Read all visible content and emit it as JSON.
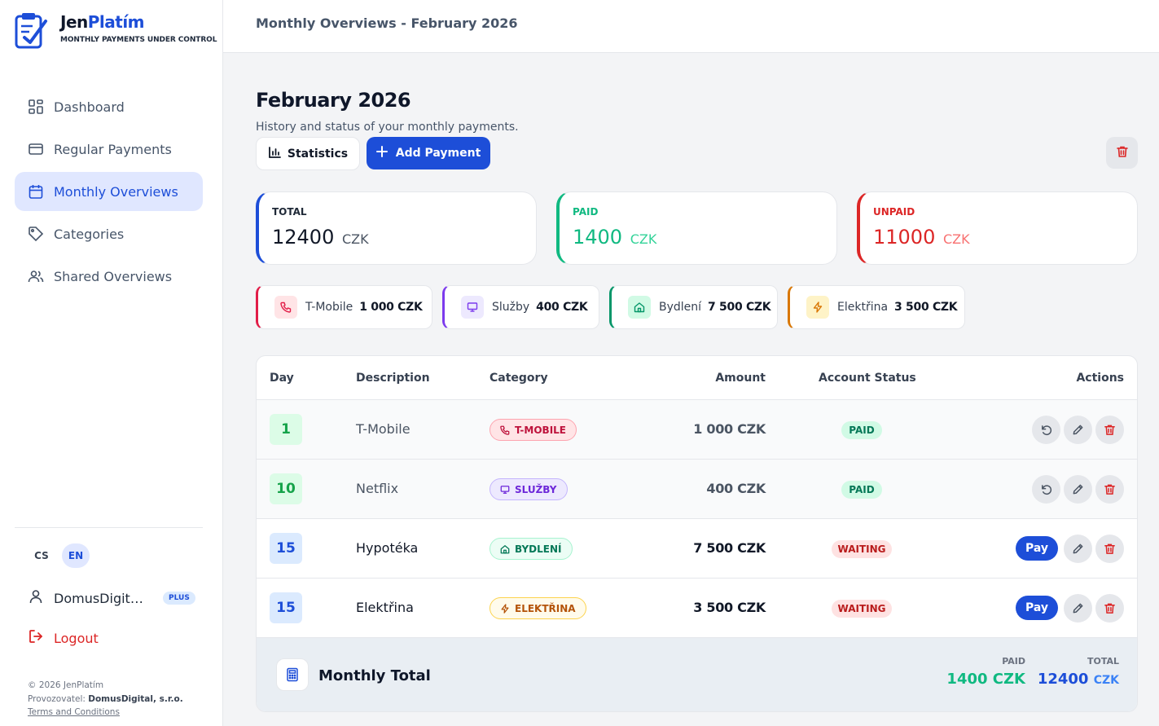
{
  "brand": {
    "name_part1": "Jen",
    "name_part2": "Platím",
    "tagline": "MONTHLY PAYMENTS UNDER CONTROL"
  },
  "nav": {
    "items": [
      {
        "label": "Dashboard",
        "icon": "dashboard-icon",
        "active": false
      },
      {
        "label": "Regular Payments",
        "icon": "credit-card-icon",
        "active": false
      },
      {
        "label": "Monthly Overviews",
        "icon": "calendar-icon",
        "active": true
      },
      {
        "label": "Categories",
        "icon": "tag-icon",
        "active": false
      },
      {
        "label": "Shared Overviews",
        "icon": "users-icon",
        "active": false
      }
    ]
  },
  "lang": {
    "cs": "CS",
    "en": "EN",
    "active": "EN"
  },
  "user": {
    "name": "DomusDigital s.r.o.",
    "badge": "PLUS",
    "logout": "Logout"
  },
  "footer": {
    "copyright": "© 2026 JenPlatím",
    "operator_label": "Provozovatel: ",
    "operator": "DomusDigital, s.r.o.",
    "terms": "Terms and Conditions"
  },
  "header": {
    "title": "Monthly Overviews - February 2026"
  },
  "page": {
    "title": "February 2026",
    "subtitle": "History and status of your monthly payments.",
    "statistics_label": "Statistics",
    "add_label": "Add Payment"
  },
  "summary": {
    "total": {
      "label": "TOTAL",
      "value": "12400",
      "currency": "CZK"
    },
    "paid": {
      "label": "PAID",
      "value": "1400",
      "currency": "CZK"
    },
    "unpaid": {
      "label": "UNPAID",
      "value": "11000",
      "currency": "CZK"
    }
  },
  "categories": [
    {
      "name": "T-Mobile",
      "amount": "1 000 CZK",
      "color": "#e11d48"
    },
    {
      "name": "Služby",
      "amount": "400 CZK",
      "color": "#7c3aed"
    },
    {
      "name": "Bydlení",
      "amount": "7 500 CZK",
      "color": "#059669"
    },
    {
      "name": "Elektřina",
      "amount": "3 500 CZK",
      "color": "#d97706"
    }
  ],
  "table": {
    "headers": {
      "day": "Day",
      "description": "Description",
      "category": "Category",
      "amount": "Amount",
      "status": "Account Status",
      "actions": "Actions"
    },
    "rows": [
      {
        "day": "1",
        "description": "T-Mobile",
        "category": "T-MOBILE",
        "amount": "1 000 CZK",
        "status": "PAID"
      },
      {
        "day": "10",
        "description": "Netflix",
        "category": "SLUŽBY",
        "amount": "400 CZK",
        "status": "PAID"
      },
      {
        "day": "15",
        "description": "Hypotéka",
        "category": "BYDLENÍ",
        "amount": "7 500 CZK",
        "status": "WAITING",
        "pay_label": "Pay"
      },
      {
        "day": "15",
        "description": "Elektřina",
        "category": "ELEKTŘINA",
        "amount": "3 500 CZK",
        "status": "WAITING",
        "pay_label": "Pay"
      }
    ],
    "footer": {
      "title": "Monthly Total",
      "paid_label": "PAID",
      "paid_value": "1400 CZK",
      "total_label": "TOTAL",
      "total_value": "12400",
      "total_currency": "CZK"
    }
  },
  "colors": {
    "accent": "#1d4ed8",
    "paid": "#10b981",
    "unpaid": "#dc2626"
  }
}
